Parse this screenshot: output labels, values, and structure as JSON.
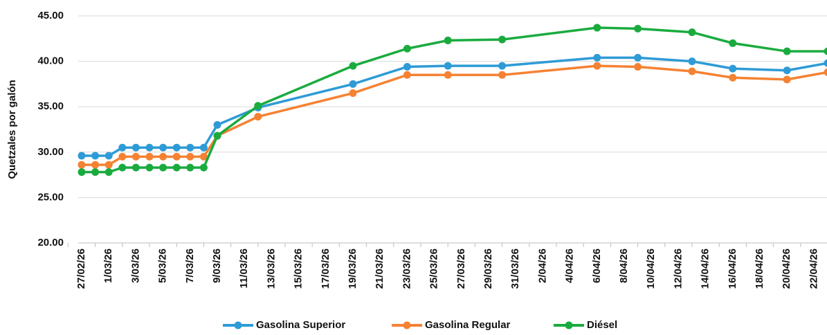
{
  "chart_data": {
    "type": "line",
    "y_label": "Quetzales por galón",
    "x": [
      "27/02/26",
      "28/02/26",
      "1/03/26",
      "2/03/26",
      "3/03/26",
      "4/03/26",
      "5/03/26",
      "6/03/26",
      "7/03/26",
      "8/03/26",
      "9/03/26",
      "12/03/26",
      "19/03/26",
      "23/03/26",
      "26/03/26",
      "30/03/26",
      "6/04/26",
      "9/04/26",
      "13/04/26",
      "16/04/26",
      "20/04/26",
      "23/04/26"
    ],
    "series": [
      {
        "name": "Gasolina Superior",
        "color": "#2e9bd6",
        "values": [
          29.6,
          29.6,
          29.6,
          30.5,
          30.5,
          30.5,
          30.5,
          30.5,
          30.5,
          30.5,
          33.0,
          34.9,
          37.5,
          39.4,
          39.5,
          39.5,
          40.4,
          40.4,
          40.0,
          39.2,
          39.0,
          39.8
        ]
      },
      {
        "name": "Gasolina Regular",
        "color": "#f58233",
        "values": [
          28.6,
          28.6,
          28.6,
          29.5,
          29.5,
          29.5,
          29.5,
          29.5,
          29.5,
          29.5,
          31.8,
          33.9,
          36.5,
          38.5,
          38.5,
          38.5,
          39.5,
          39.4,
          38.9,
          38.2,
          38.0,
          38.8
        ]
      },
      {
        "name": "Diésel",
        "color": "#1aab3f",
        "values": [
          27.8,
          27.8,
          27.8,
          28.3,
          28.3,
          28.3,
          28.3,
          28.3,
          28.3,
          28.3,
          31.8,
          35.1,
          39.5,
          41.4,
          42.3,
          42.4,
          43.7,
          43.6,
          43.2,
          42.0,
          41.1,
          41.1
        ]
      }
    ],
    "xlim": [
      "27/02/26",
      "23/04/26"
    ],
    "xticks": [
      "27/02/26",
      "1/03/26",
      "3/03/26",
      "5/03/26",
      "7/03/26",
      "9/03/26",
      "11/03/26",
      "13/03/26",
      "15/03/26",
      "17/03/26",
      "19/03/26",
      "21/03/26",
      "23/03/26",
      "25/03/26",
      "27/03/26",
      "29/03/26",
      "31/03/26",
      "2/04/26",
      "4/04/26",
      "6/04/26",
      "8/04/26",
      "10/04/26",
      "12/04/26",
      "14/04/26",
      "16/04/26",
      "18/04/26",
      "20/04/26",
      "22/04/26"
    ],
    "ylim": [
      20,
      45
    ],
    "yticks": [
      {
        "value": 20,
        "label": "20.00"
      },
      {
        "value": 25,
        "label": "25.00"
      },
      {
        "value": 30,
        "label": "30.00"
      },
      {
        "value": 35,
        "label": "35.00"
      },
      {
        "value": 40,
        "label": "40.00"
      },
      {
        "value": 45,
        "label": "45.00"
      }
    ],
    "grid": true,
    "legend": "bottom"
  }
}
